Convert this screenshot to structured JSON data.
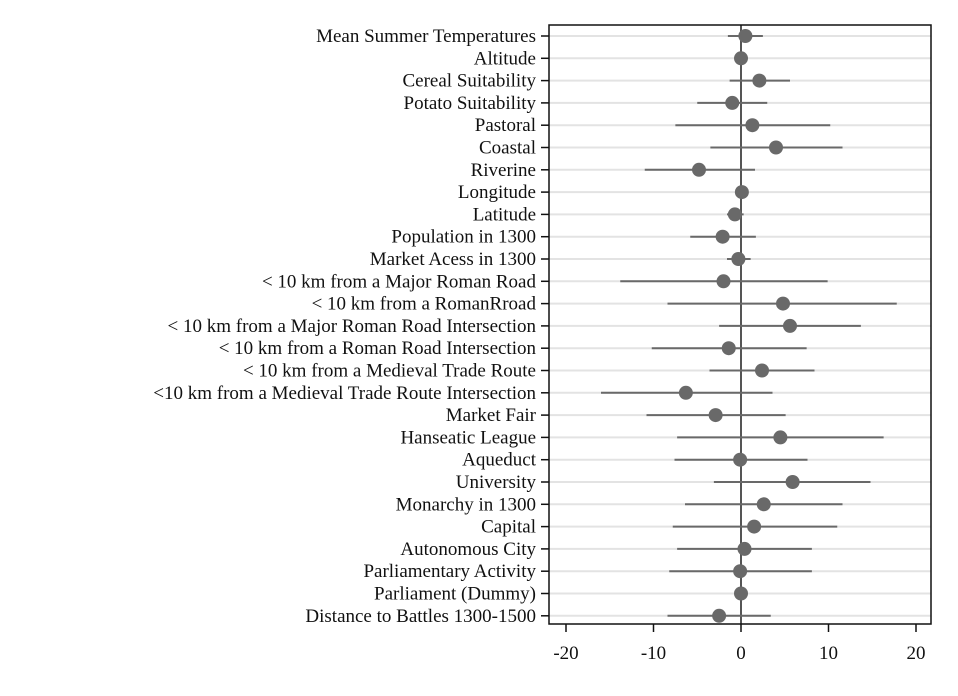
{
  "chart_data": {
    "type": "coefficient-plot",
    "title": "",
    "xlabel": "",
    "ylabel": "",
    "xlim": [
      -21.5,
      21.5
    ],
    "xticks": [
      -20,
      -10,
      0,
      10,
      20
    ],
    "xtick_labels": [
      "-20",
      "-10",
      "0",
      "10",
      "20"
    ],
    "reference_line_x": 0,
    "grid": "horizontal",
    "colors": {
      "marker": "#696969",
      "interval": "#696969",
      "grid": "#e3e3e3",
      "axis": "#111111"
    },
    "categories": [
      "Mean Summer Temperatures",
      "Altitude",
      "Cereal Suitability",
      "Potato Suitability",
      "Pastoral",
      "Coastal",
      "Riverine",
      "Longitude",
      "Latitude",
      "Population in 1300",
      "Market Acess in 1300",
      "< 10 km from a Major Roman Road",
      "< 10 km from a RomanRroad",
      "< 10 km from a Major Roman Road Intersection",
      "< 10 km from a Roman Road Intersection",
      "< 10 km from a Medieval Trade Route",
      "<10 km from a Medieval Trade Route Intersection",
      "Market Fair",
      "Hanseatic League",
      "Aqueduct",
      "University",
      "Monarchy in 1300",
      "Capital",
      "Autonomous City",
      "Parliamentary Activity",
      "Parliament (Dummy)",
      "Distance to Battles 1300-1500"
    ],
    "estimates": [
      0.5,
      0.0,
      2.1,
      -1.0,
      1.3,
      4.0,
      -4.8,
      0.1,
      -0.7,
      -2.1,
      -0.3,
      -2.0,
      4.8,
      5.6,
      -1.4,
      2.4,
      -6.3,
      -2.9,
      4.5,
      -0.1,
      5.9,
      2.6,
      1.5,
      0.4,
      -0.1,
      0.0,
      -2.5
    ],
    "lower": [
      -1.5,
      -0.3,
      -1.3,
      -5.0,
      -7.5,
      -3.5,
      -11.0,
      -0.3,
      -1.6,
      -5.8,
      -1.6,
      -13.8,
      -8.4,
      -2.5,
      -10.2,
      -3.6,
      -16.0,
      -10.8,
      -7.3,
      -7.6,
      -3.1,
      -6.4,
      -7.8,
      -7.3,
      -8.2,
      -0.3,
      -8.4
    ],
    "upper": [
      2.5,
      0.3,
      5.6,
      3.0,
      10.2,
      11.6,
      1.6,
      0.5,
      0.3,
      1.7,
      1.1,
      9.9,
      17.8,
      13.7,
      7.5,
      8.4,
      3.6,
      5.1,
      16.3,
      7.6,
      14.8,
      11.6,
      11.0,
      8.1,
      8.1,
      0.3,
      3.4
    ]
  }
}
